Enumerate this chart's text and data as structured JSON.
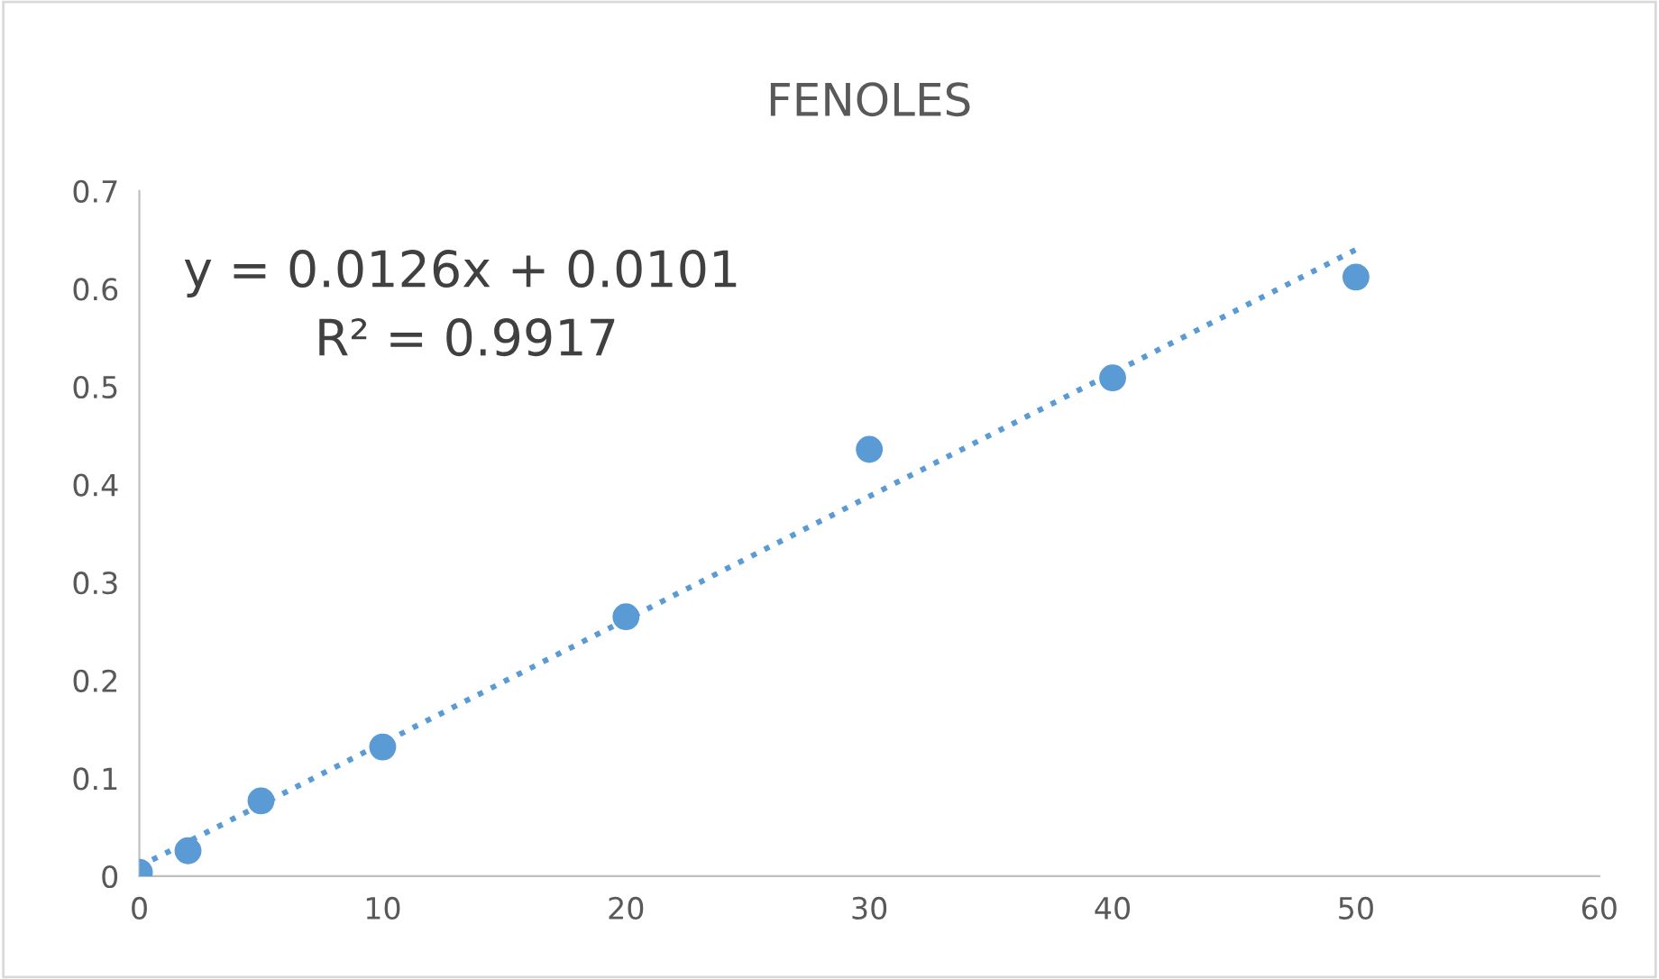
{
  "chart_data": {
    "type": "scatter",
    "title": "FENOLES",
    "series": [
      {
        "color": "#5b9bd5",
        "x": [
          0,
          2,
          5,
          10,
          20,
          30,
          40,
          50
        ],
        "values": [
          0.004,
          0.026,
          0.077,
          0.132,
          0.265,
          0.436,
          0.509,
          0.612
        ],
        "marker": "circle"
      },
      {
        "type": "line",
        "color": "#5b9bd5",
        "x": [
          0,
          50
        ],
        "values": [
          0.01,
          0.64
        ],
        "line_style": "dotted",
        "marker": "none"
      }
    ],
    "annotations": [
      "y = 0.0126x + 0.0101",
      "R² = 0.9917"
    ],
    "xlim": [
      0,
      60
    ],
    "xticks": [
      0,
      10,
      20,
      30,
      40,
      50,
      60
    ],
    "ylim": [
      0,
      0.7
    ],
    "yticks": [
      0,
      0.1,
      0.2,
      0.3,
      0.4,
      0.5,
      0.6,
      0.7
    ],
    "grid": false,
    "legend": false
  }
}
